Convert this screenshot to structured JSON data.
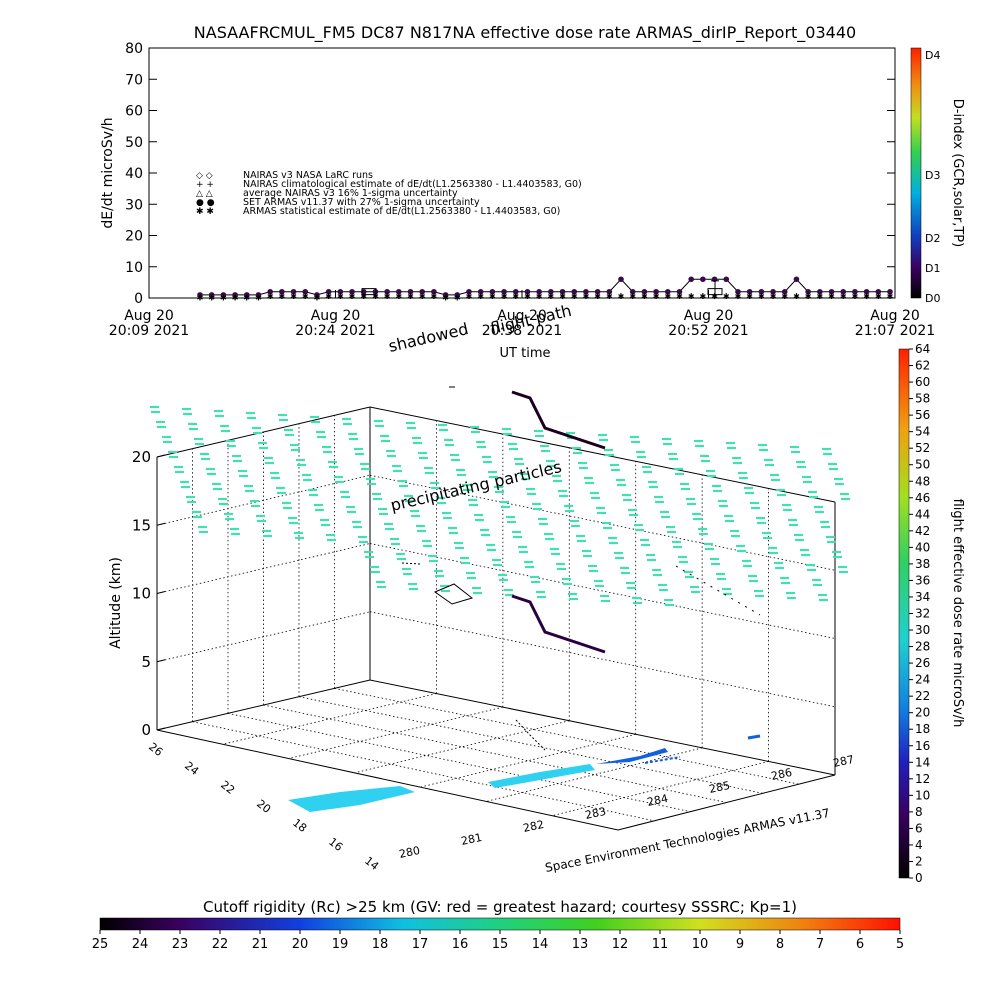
{
  "title": "NASAAFRCMUL_FM5 DC87 N817NA effective dose rate ARMAS_dirIP_Report_03440",
  "top_chart": {
    "ylabel": "dE/dt microSv/h",
    "yticks": [
      "0",
      "10",
      "20",
      "30",
      "40",
      "50",
      "60",
      "70",
      "80"
    ],
    "ylim": [
      0,
      80
    ],
    "xlabel": "UT time",
    "xticks": [
      {
        "date": "Aug 20",
        "time": "20:09 2021"
      },
      {
        "date": "Aug 20",
        "time": "20:24 2021"
      },
      {
        "date": "Aug 20",
        "time": "20:38 2021"
      },
      {
        "date": "Aug 20",
        "time": "20:52 2021"
      },
      {
        "date": "Aug 20",
        "time": "21:07 2021"
      }
    ],
    "legend": [
      {
        "symbol": "◇ ◇",
        "text": "NAIRAS v3 NASA LaRC runs"
      },
      {
        "symbol": "+ +",
        "text": "NAIRAS climatological estimate of dE/dt(L1.2563380 - L1.4403583, G0)"
      },
      {
        "symbol": "△ △",
        "text": "average NAIRAS v3 16% 1-sigma uncertainty"
      },
      {
        "symbol": "● ●",
        "text": "SET ARMAS v11.37 with 27% 1-sigma uncertainty"
      },
      {
        "symbol": "✱ ✱",
        "text": "ARMAS statistical estimate of dE/dt(L1.2563380 - L1.4403583, G0)"
      }
    ],
    "dindex_label": "D-index (GCR,solar,TP)",
    "dindex_ticks": [
      "D0",
      "D1",
      "D2",
      "D3",
      "D4"
    ]
  },
  "chart_data": {
    "type": "line",
    "title": "NASAAFRCMUL_FM5 DC87 N817NA effective dose rate ARMAS_dirIP_Report_03440",
    "xlabel": "UT time",
    "ylabel": "dE/dt microSv/h",
    "ylim": [
      0,
      80
    ],
    "series": [
      {
        "name": "SET ARMAS v11.37 with 27% 1-sigma uncertainty",
        "values": [
          1,
          1,
          1,
          1,
          1,
          1,
          2,
          2,
          2,
          2,
          1,
          2,
          2,
          2,
          2,
          2,
          2,
          2,
          2,
          2,
          2,
          1,
          1,
          2,
          2,
          2,
          2,
          2,
          2,
          2,
          2,
          2,
          2,
          2,
          2,
          2,
          6,
          2,
          2,
          2,
          2,
          2,
          6,
          6,
          6,
          6,
          2,
          2,
          2,
          2,
          2,
          6,
          2,
          2,
          2,
          2,
          2,
          2,
          2,
          2
        ]
      },
      {
        "name": "ARMAS statistical estimate of dE/dt(L1.2563380 - L1.4403583, G0)",
        "values": [
          0.5,
          0.5,
          0.5,
          0.5,
          0.5,
          0.5,
          1,
          1,
          1,
          1,
          0.5,
          1,
          1,
          1,
          1,
          1,
          1,
          1,
          1,
          1,
          1,
          0.5,
          0.5,
          1,
          1,
          1,
          1,
          1,
          1,
          1,
          1,
          1,
          1,
          1,
          1,
          1,
          1,
          1,
          1,
          1,
          1,
          1,
          1,
          1,
          1,
          1,
          1,
          1,
          1,
          1,
          1,
          1,
          1,
          1,
          1,
          1,
          1,
          1,
          1,
          1
        ]
      }
    ]
  },
  "bottom_chart": {
    "ylabel": "Altitude (km)",
    "zticks": [
      "0",
      "5",
      "10",
      "15",
      "20"
    ],
    "lon_ticks": [
      "280",
      "281",
      "282",
      "283",
      "284",
      "285",
      "286",
      "287"
    ],
    "lat_ticks": [
      "14",
      "16",
      "18",
      "20",
      "22",
      "24",
      "26"
    ],
    "label_flight_path": "flight path",
    "label_shadowed": "shadowed",
    "label_precipitating": "precipitating particles",
    "credit": "Space Environment Technologies ARMAS v11.37",
    "colorbar_label": "flight effective dose rate microSv/h",
    "colorbar_ticks": [
      "0",
      "2",
      "4",
      "6",
      "8",
      "10",
      "12",
      "14",
      "16",
      "18",
      "20",
      "22",
      "24",
      "26",
      "28",
      "30",
      "32",
      "34",
      "36",
      "38",
      "40",
      "42",
      "44",
      "46",
      "48",
      "50",
      "52",
      "54",
      "56",
      "58",
      "60",
      "62",
      "64"
    ],
    "cutoff_label": "Cutoff rigidity (Rc) >25 km (GV: red = greatest hazard; courtesy SSSRC; Kp=1)",
    "cutoff_ticks": [
      "25",
      "24",
      "23",
      "22",
      "21",
      "20",
      "19",
      "18",
      "17",
      "16",
      "15",
      "14",
      "13",
      "12",
      "11",
      "10",
      "9",
      "8",
      "7",
      "6",
      "5"
    ]
  },
  "colors": {
    "dose_dots": "#3a0a4a",
    "precip_dash": "#40e0b0",
    "cyan_patch": "#30d0f0",
    "blue_patch": "#1060e0"
  }
}
